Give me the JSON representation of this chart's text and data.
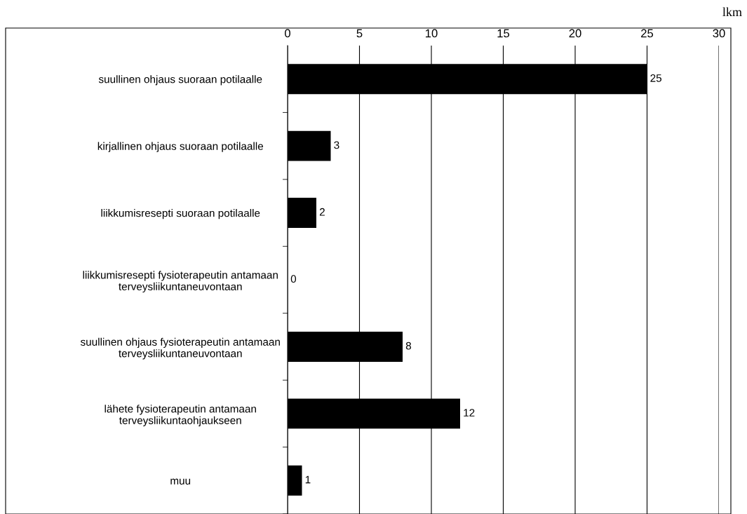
{
  "chart_data": {
    "type": "bar",
    "orientation": "horizontal",
    "xlabel": "lkm",
    "categories": [
      "suullinen ohjaus suoraan potilaalle",
      "kirjallinen ohjaus suoraan potilaalle",
      "liikkumisresepti suoraan potilaalle",
      "liikkumisresepti fysioterapeutin antamaan\nterveysliikuntaneuvontaan",
      "suullinen ohjaus fysioterapeutin antamaan\nterveysliikuntaneuvontaan",
      "lähete fysioterapeutin antamaan\nterveysliikuntaohjaukseen",
      "muu"
    ],
    "values": [
      25,
      3,
      2,
      0,
      8,
      12,
      1
    ],
    "color": "#000000",
    "xlim": [
      0,
      30
    ],
    "xticks": [
      0,
      5,
      10,
      15,
      20,
      25,
      30
    ],
    "grid": "x",
    "data_labels": true
  }
}
